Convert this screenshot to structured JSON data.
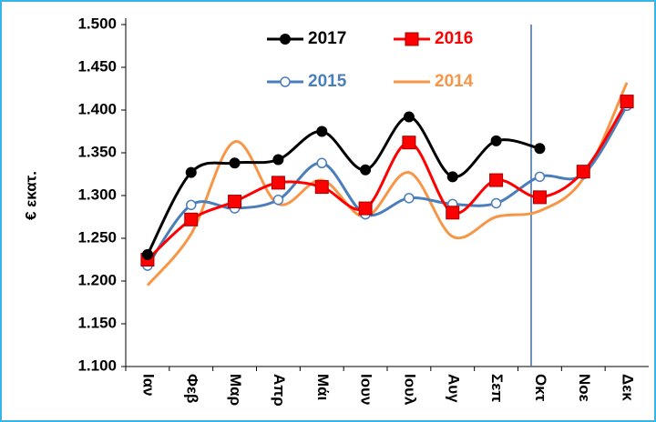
{
  "chart_data": {
    "type": "line",
    "smooth": true,
    "grid": false,
    "legend": "top",
    "ylabel": "€ εκατ.",
    "categories": [
      "Ιαν",
      "Φεβ",
      "Μαρ",
      "Απρ",
      "Μάι",
      "Ιουν",
      "Ιουλ",
      "Αυγ",
      "Σεπ",
      "Οκτ",
      "Νοε",
      "Δεκ"
    ],
    "ylim": [
      1100,
      1500
    ],
    "yticks": [
      {
        "value": 1100,
        "label": "1.100"
      },
      {
        "value": 1150,
        "label": "1.150"
      },
      {
        "value": 1200,
        "label": "1.200"
      },
      {
        "value": 1250,
        "label": "1.250"
      },
      {
        "value": 1300,
        "label": "1.300"
      },
      {
        "value": 1350,
        "label": "1.350"
      },
      {
        "value": 1400,
        "label": "1.400"
      },
      {
        "value": 1450,
        "label": "1.450"
      },
      {
        "value": 1500,
        "label": "1.500"
      }
    ],
    "series": [
      {
        "name": "2017",
        "color": "#000000",
        "marker": "circle",
        "values": [
          1231,
          1327,
          1338,
          1342,
          1375,
          1330,
          1392,
          1322,
          1364,
          1355,
          null,
          null
        ]
      },
      {
        "name": "2016",
        "color": "#ff0000",
        "marker": "square",
        "values": [
          1225,
          1272,
          1293,
          1315,
          1310,
          1285,
          1362,
          1280,
          1318,
          1298,
          1328,
          1410
        ]
      },
      {
        "name": "2015",
        "color": "#4a7ebb",
        "marker": "open-circle",
        "values": [
          1218,
          1289,
          1285,
          1295,
          1338,
          1278,
          1297,
          1290,
          1291,
          1322,
          1325,
          1405
        ]
      },
      {
        "name": "2014",
        "color": "#f79646",
        "marker": "none",
        "values": [
          1195,
          1255,
          1363,
          1290,
          1318,
          1275,
          1327,
          1252,
          1275,
          1282,
          1320,
          1432
        ]
      }
    ]
  }
}
